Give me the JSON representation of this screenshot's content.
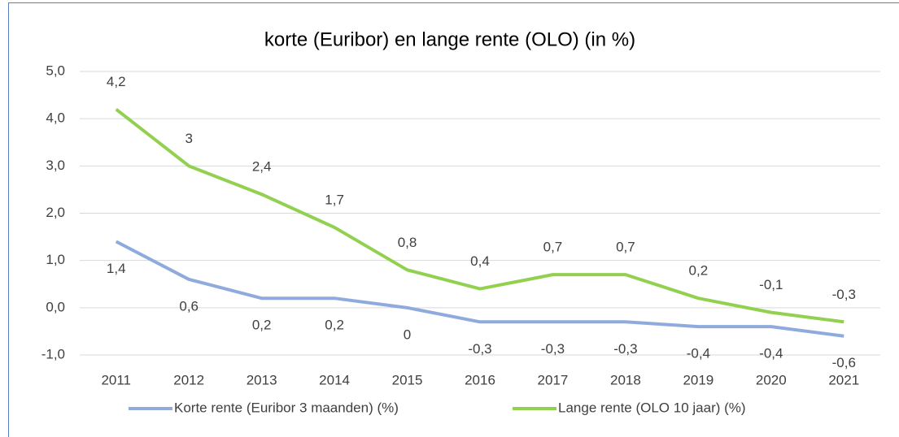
{
  "chart_data": {
    "type": "line",
    "title": "korte (Euribor) en lange rente (OLO) (in %)",
    "categories": [
      "2011",
      "2012",
      "2013",
      "2014",
      "2015",
      "2016",
      "2017",
      "2018",
      "2019",
      "2020",
      "2021"
    ],
    "series": [
      {
        "name": "Korte rente (Euribor 3 maanden) (%)",
        "color": "#8faadc",
        "values": [
          1.4,
          0.6,
          0.2,
          0.2,
          0,
          -0.3,
          -0.3,
          -0.3,
          -0.4,
          -0.4,
          -0.6
        ],
        "value_labels": [
          "1,4",
          "0,6",
          "0,2",
          "0,2",
          "0",
          "-0,3",
          "-0,3",
          "-0,3",
          "-0,4",
          "-0,4",
          "-0,6"
        ]
      },
      {
        "name": "Lange rente (OLO 10 jaar) (%)",
        "color": "#92d050",
        "values": [
          4.2,
          3,
          2.4,
          1.7,
          0.8,
          0.4,
          0.7,
          0.7,
          0.2,
          -0.1,
          -0.3
        ],
        "value_labels": [
          "4,2",
          "3",
          "2,4",
          "1,7",
          "0,8",
          "0,4",
          "0,7",
          "0,7",
          "0,2",
          "-0,1",
          "-0,3"
        ]
      }
    ],
    "ylim": [
      -1,
      5
    ],
    "yticks": [
      {
        "value": -1,
        "label": "-1,0"
      },
      {
        "value": 0,
        "label": "0,0"
      },
      {
        "value": 1,
        "label": "1,0"
      },
      {
        "value": 2,
        "label": "2,0"
      },
      {
        "value": 3,
        "label": "3,0"
      },
      {
        "value": 4,
        "label": "4,0"
      },
      {
        "value": 5,
        "label": "5,0"
      }
    ],
    "grid": true,
    "legend": "bottom"
  }
}
